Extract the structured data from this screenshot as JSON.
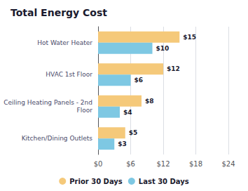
{
  "chart_data": {
    "type": "bar",
    "orientation": "horizontal",
    "title": "Total Energy Cost",
    "categories": [
      "Hot Water Heater",
      "HVAC 1st Floor",
      "Ceiling Heating Panels - 2nd\nFloor",
      "Kitchen/Dining Outlets"
    ],
    "series": [
      {
        "name": "Prior 30 Days",
        "color": "#F5C97A",
        "values": [
          15,
          12,
          8,
          5
        ],
        "value_labels": [
          "$15",
          "$12",
          "$8",
          "$5"
        ]
      },
      {
        "name": "Last 30 Days",
        "color": "#7EC8E3",
        "values": [
          10,
          6,
          4,
          3
        ],
        "value_labels": [
          "$10",
          "$6",
          "$4",
          "$3"
        ]
      }
    ],
    "xlim": [
      0,
      24
    ],
    "xticks": [
      {
        "value": 0,
        "label": "$0"
      },
      {
        "value": 6,
        "label": "$6"
      },
      {
        "value": 12,
        "label": "$12"
      },
      {
        "value": 18,
        "label": "$18"
      },
      {
        "value": 24,
        "label": "$24"
      }
    ],
    "grid": true,
    "legend": "bottom",
    "data_labels": true
  }
}
